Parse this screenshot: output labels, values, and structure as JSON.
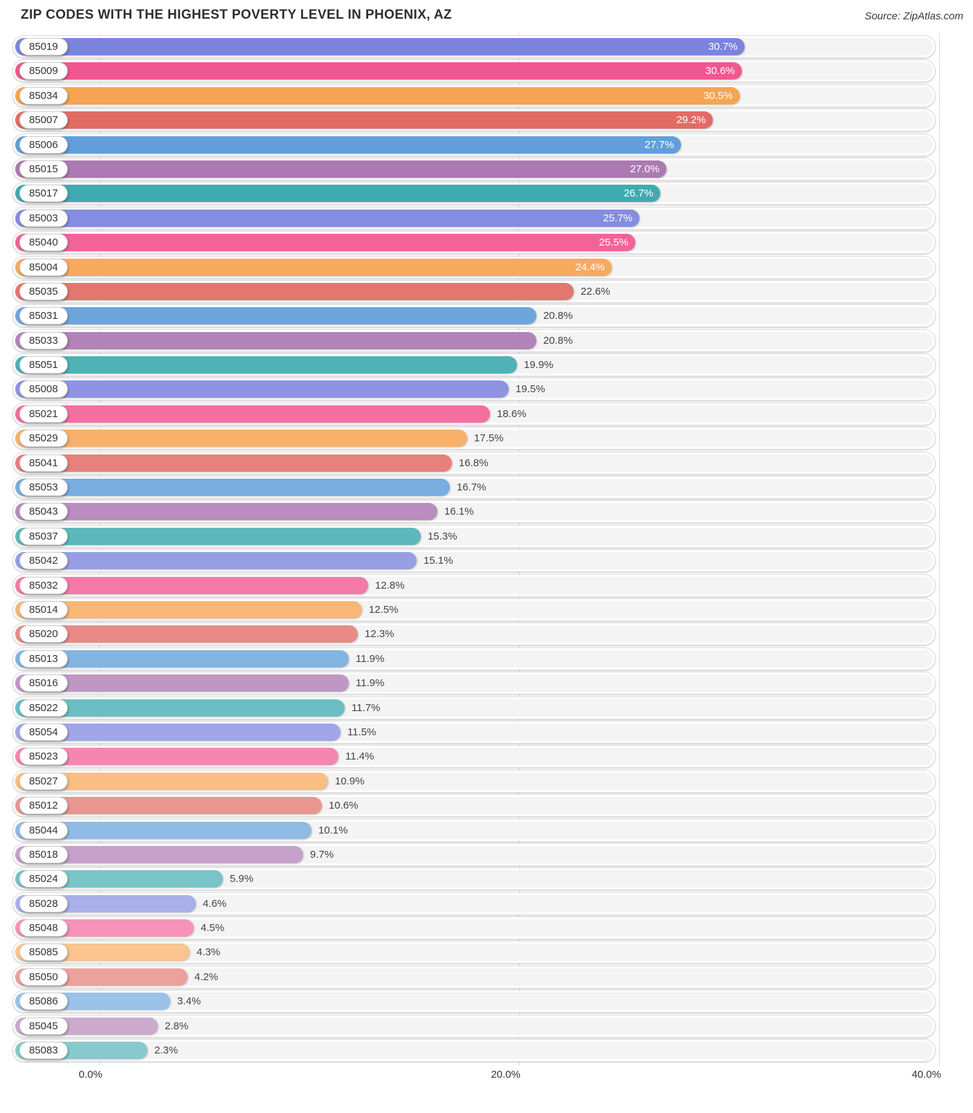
{
  "title": "ZIP CODES WITH THE HIGHEST POVERTY LEVEL IN PHOENIX, AZ",
  "source": "Source: ZipAtlas.com",
  "chart_data": {
    "type": "bar",
    "orientation": "horizontal",
    "title": "ZIP CODES WITH THE HIGHEST POVERTY LEVEL IN PHOENIX, AZ",
    "xlabel": "",
    "ylabel": "",
    "xlim": [
      0,
      40
    ],
    "x_ticks": [
      "0.0%",
      "20.0%",
      "40.0%"
    ],
    "grid": true,
    "legend": false,
    "categories": [
      "85019",
      "85009",
      "85034",
      "85007",
      "85006",
      "85015",
      "85017",
      "85003",
      "85040",
      "85004",
      "85035",
      "85031",
      "85033",
      "85051",
      "85008",
      "85021",
      "85029",
      "85041",
      "85053",
      "85043",
      "85037",
      "85042",
      "85032",
      "85014",
      "85020",
      "85013",
      "85016",
      "85022",
      "85054",
      "85023",
      "85027",
      "85012",
      "85044",
      "85018",
      "85024",
      "85028",
      "85048",
      "85085",
      "85050",
      "85086",
      "85045",
      "85083"
    ],
    "values": [
      30.7,
      30.6,
      30.5,
      29.2,
      27.7,
      27.0,
      26.7,
      25.7,
      25.5,
      24.4,
      22.6,
      20.8,
      20.8,
      19.9,
      19.5,
      18.6,
      17.5,
      16.8,
      16.7,
      16.1,
      15.3,
      15.1,
      12.8,
      12.5,
      12.3,
      11.9,
      11.9,
      11.7,
      11.5,
      11.4,
      10.9,
      10.6,
      10.1,
      9.7,
      5.9,
      4.6,
      4.5,
      4.3,
      4.2,
      3.4,
      2.8,
      2.3
    ],
    "labels": [
      "30.7%",
      "30.6%",
      "30.5%",
      "29.2%",
      "27.7%",
      "27.0%",
      "26.7%",
      "25.7%",
      "25.5%",
      "24.4%",
      "22.6%",
      "20.8%",
      "20.8%",
      "19.9%",
      "19.5%",
      "18.6%",
      "17.5%",
      "16.8%",
      "16.7%",
      "16.1%",
      "15.3%",
      "15.1%",
      "12.8%",
      "12.5%",
      "12.3%",
      "11.9%",
      "11.9%",
      "11.7%",
      "11.5%",
      "11.4%",
      "10.9%",
      "10.6%",
      "10.1%",
      "9.7%",
      "5.9%",
      "4.6%",
      "4.5%",
      "4.3%",
      "4.2%",
      "3.4%",
      "2.8%",
      "2.3%"
    ],
    "palette": [
      "#7b84dd",
      "#f1558f",
      "#f6a24e",
      "#e16760",
      "#5b9bd8",
      "#a872ae",
      "#33a6ab"
    ],
    "bar_fade_opacity": {
      "start": 1.0,
      "end": 0.59
    },
    "value_label_inside_threshold": 24,
    "value_label_inside_color": "#ffffff",
    "value_label_outside_color": "#444444",
    "track_color": "#f4f4f4",
    "gridline_color": "#d9d9d9"
  }
}
